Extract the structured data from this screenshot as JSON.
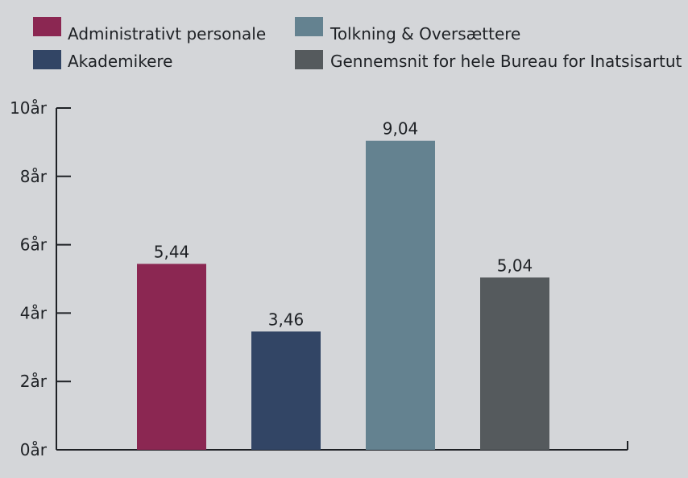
{
  "chart_data": {
    "type": "bar",
    "categories": [
      "Administrativt personale",
      "Akademikere",
      "Tolkning & Oversættere",
      "Gennemsnit for hele Bureau for Inatsisartut"
    ],
    "values": [
      5.44,
      3.46,
      9.04,
      5.04
    ],
    "value_labels": [
      "5,44",
      "3,46",
      "9,04",
      "5,04"
    ],
    "colors": [
      "#8b2752",
      "#324565",
      "#648290",
      "#555a5d"
    ],
    "ylim": [
      0,
      10
    ],
    "yticks": [
      0,
      2,
      4,
      6,
      8,
      10
    ],
    "ytick_labels": [
      "0år",
      "2år",
      "4år",
      "6år",
      "8år",
      "10år"
    ],
    "title": "",
    "xlabel": "",
    "ylabel": "",
    "grid": false,
    "legend_position": "top"
  }
}
